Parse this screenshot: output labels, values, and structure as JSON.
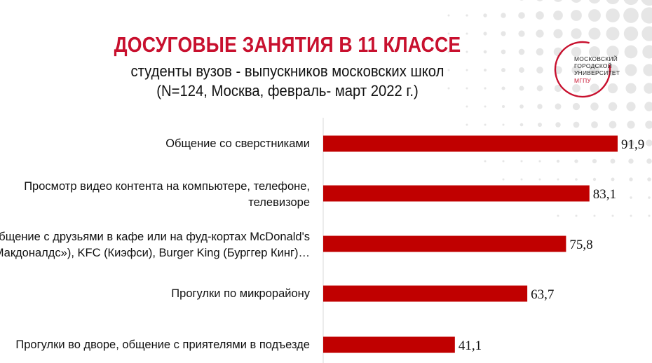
{
  "header": {
    "title": "ДОСУГОВЫЕ ЗАНЯТИЯ В 11 КЛАССЕ",
    "subtitle_line1": "студенты вузов - выпускников московских школ",
    "subtitle_line2": "(N=124, Москва, февраль- март 2022 г.)"
  },
  "logo": {
    "line1": "МОСКОВСКИЙ",
    "line2": "ГОРОДСКОЙ",
    "line3": "УНИВЕРСИТЕТ",
    "line4": "МГПУ",
    "ring_color": "#c8102e"
  },
  "colors": {
    "accent": "#c8102e",
    "bar": "#c00000"
  },
  "chart_data": {
    "type": "bar",
    "orientation": "horizontal",
    "title": "ДОСУГОВЫЕ ЗАНЯТИЯ В 11 КЛАССЕ",
    "xlabel": "",
    "ylabel": "",
    "xlim": [
      0,
      100
    ],
    "grid": false,
    "categories": [
      [
        "Общение со сверстниками"
      ],
      [
        "Просмотр видео контента на компьютере, телефоне,",
        "телевизоре"
      ],
      [
        "Общение с друзьями в кафе или на фуд-кортах McDonald's",
        "(«Макдоналдс»), KFC (Киэфси), Burger King (Бурггер Кинг)…"
      ],
      [
        "Прогулки по микрорайону"
      ],
      [
        "Прогулки во дворе, общение с приятелями в подъезде"
      ]
    ],
    "values": [
      91.9,
      83.1,
      75.8,
      63.7,
      41.1
    ],
    "value_labels": [
      "91,9",
      "83,1",
      "75,8",
      "63,7",
      "41,1"
    ]
  }
}
